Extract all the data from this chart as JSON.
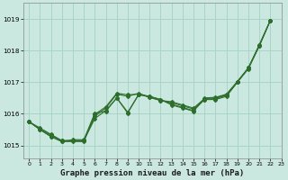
{
  "background_color": "#cbe8e0",
  "grid_color": "#a8d5c8",
  "line_color": "#2d6e2d",
  "xlabel": "Graphe pression niveau de la mer (hPa)",
  "xlabel_fontsize": 6.5,
  "xlim": [
    -0.5,
    23
  ],
  "ylim": [
    1014.6,
    1019.5
  ],
  "yticks": [
    1015,
    1016,
    1017,
    1018,
    1019
  ],
  "xticks": [
    0,
    1,
    2,
    3,
    4,
    5,
    6,
    7,
    8,
    9,
    10,
    11,
    12,
    13,
    14,
    15,
    16,
    17,
    18,
    19,
    20,
    21,
    22,
    23
  ],
  "series": [
    {
      "x": [
        0,
        1,
        2,
        3,
        4,
        5,
        6,
        7,
        8,
        9,
        10,
        11,
        12,
        13,
        14,
        15,
        16,
        17,
        18,
        19,
        20,
        21,
        22
      ],
      "y": [
        1015.75,
        1015.55,
        1015.35,
        1015.15,
        1015.15,
        1015.15,
        1015.85,
        1016.1,
        1016.5,
        1016.05,
        1016.6,
        1016.55,
        1016.45,
        1016.3,
        1016.2,
        1016.1,
        1016.45,
        1016.45,
        1016.55,
        1017.0,
        1017.45,
        1018.15,
        1018.95
      ]
    },
    {
      "x": [
        0,
        1,
        2,
        3,
        4,
        5,
        6,
        7,
        8,
        9,
        10,
        11,
        12,
        13,
        14,
        15,
        16,
        17,
        18,
        19,
        20,
        21,
        22
      ],
      "y": [
        1015.75,
        1015.52,
        1015.32,
        1015.15,
        1015.15,
        1015.15,
        1015.92,
        1016.18,
        1016.62,
        1016.55,
        1016.65,
        1016.52,
        1016.42,
        1016.35,
        1016.25,
        1016.15,
        1016.45,
        1016.48,
        1016.58,
        1017.0,
        1017.42,
        1018.15,
        1018.95
      ]
    },
    {
      "x": [
        0,
        1,
        2,
        3,
        4,
        5,
        6,
        7,
        8,
        9,
        10,
        11,
        12,
        13,
        14,
        15,
        16,
        17,
        18,
        19,
        20,
        21,
        22
      ],
      "y": [
        1015.75,
        1015.5,
        1015.28,
        1015.12,
        1015.12,
        1015.12,
        1015.98,
        1016.22,
        1016.65,
        1016.6,
        1016.62,
        1016.52,
        1016.42,
        1016.38,
        1016.28,
        1016.18,
        1016.48,
        1016.5,
        1016.6,
        1017.02,
        1017.45,
        1018.18,
        1018.95
      ]
    },
    {
      "x": [
        0,
        1,
        2,
        3,
        4,
        5,
        6,
        7,
        8,
        9,
        10,
        11,
        12,
        13,
        14,
        15,
        16,
        17,
        18,
        19,
        20,
        21,
        22
      ],
      "y": [
        1015.75,
        1015.5,
        1015.28,
        1015.12,
        1015.18,
        1015.18,
        1016.02,
        1016.08,
        1016.5,
        1016.02,
        1016.62,
        1016.55,
        1016.45,
        1016.28,
        1016.18,
        1016.08,
        1016.5,
        1016.52,
        1016.62,
        1017.02,
        1017.45,
        1018.18,
        1018.95
      ]
    }
  ],
  "top_series": {
    "x": [
      0,
      1,
      2,
      3,
      4,
      5,
      6,
      7,
      8,
      9,
      10,
      11,
      12,
      13,
      14,
      15,
      16,
      17,
      18,
      19,
      20,
      21,
      22,
      23
    ],
    "y": [
      1015.75,
      1015.52,
      1015.35,
      1015.15,
      1015.18,
      1015.18,
      1016.0,
      1016.1,
      1016.5,
      1016.05,
      1016.6,
      1016.55,
      1016.45,
      1016.3,
      1016.2,
      1016.1,
      1016.5,
      1016.5,
      1016.62,
      1017.05,
      1017.48,
      1018.2,
      1019.0,
      null
    ]
  }
}
